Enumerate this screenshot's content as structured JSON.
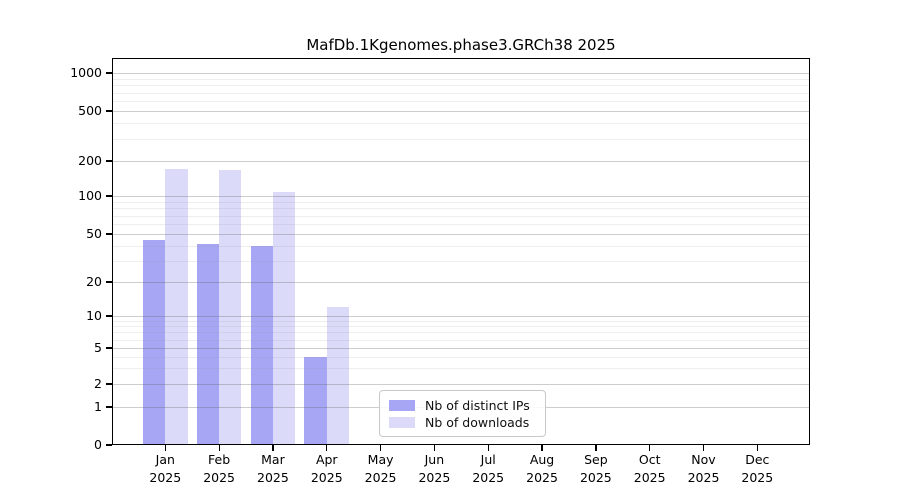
{
  "chart": {
    "title": "MafDb.1Kgenomes.phase3.GRCh38 2025"
  },
  "chart_data": {
    "type": "bar",
    "title": "MafDb.1Kgenomes.phase3.GRCh38 2025",
    "x": {
      "months": [
        "Jan",
        "Feb",
        "Mar",
        "Apr",
        "May",
        "Jun",
        "Jul",
        "Aug",
        "Sep",
        "Oct",
        "Nov",
        "Dec"
      ],
      "year": "2025"
    },
    "series": [
      {
        "name": "Nb of distinct IPs",
        "color": "#a6a6f5",
        "values": [
          45,
          41,
          40,
          4,
          0,
          0,
          0,
          0,
          0,
          0,
          0,
          0
        ]
      },
      {
        "name": "Nb of downloads",
        "color": "#dbdbf9",
        "values": [
          172,
          166,
          109,
          12,
          0,
          0,
          0,
          0,
          0,
          0,
          0,
          0
        ]
      }
    ],
    "y_axis": {
      "scale": "symlog (logarithmic above 1, linear 0 to 1)",
      "ticks": [
        0,
        1,
        2,
        5,
        10,
        20,
        50,
        100,
        200,
        500,
        1000
      ],
      "minor_ticks": [
        3,
        4,
        6,
        7,
        8,
        9,
        30,
        40,
        60,
        70,
        80,
        90,
        300,
        400,
        600,
        700,
        800,
        900
      ],
      "ylim": [
        0,
        1300
      ]
    },
    "legend": {
      "position": "bottom-center-left",
      "entries": [
        "Nb of distinct IPs",
        "Nb of downloads"
      ]
    },
    "grid": true,
    "colors": {
      "frame": "#000000",
      "grid_major": "#c9c9c9",
      "grid_minor": "#ededed",
      "text": "#000000",
      "background": "#ffffff"
    }
  }
}
